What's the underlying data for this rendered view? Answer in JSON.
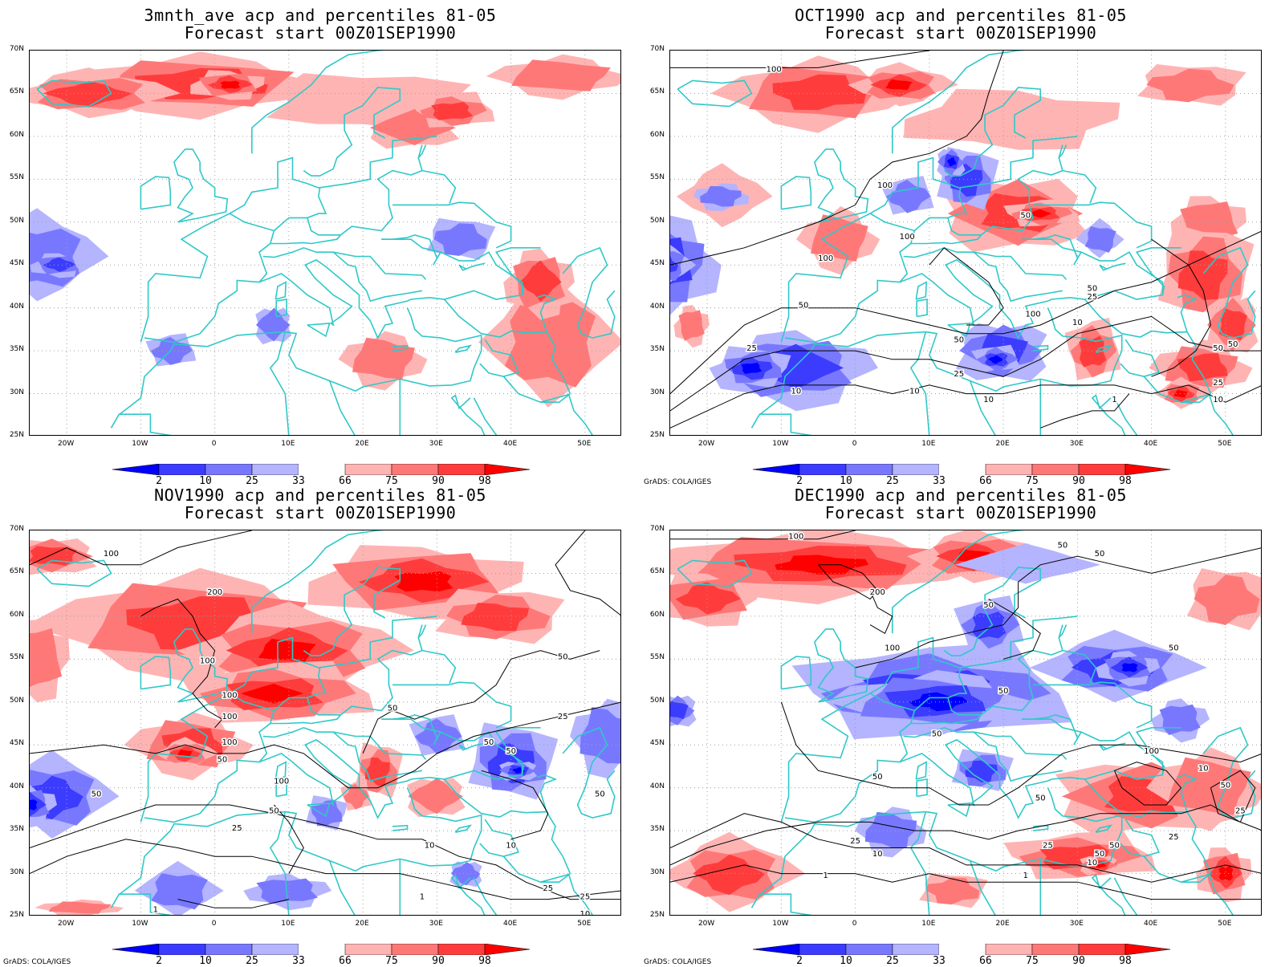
{
  "panels": [
    {
      "id": "p1",
      "title": "3mnth_ave acp and percentiles 81-05",
      "subtitle": "Forecast start 00Z01SEP1990",
      "credit": ""
    },
    {
      "id": "p2",
      "title": "OCT1990 acp and percentiles 81-05",
      "subtitle": "Forecast start 00Z01SEP1990",
      "credit": "GrADS: COLA/IGES"
    },
    {
      "id": "p3",
      "title": "NOV1990 acp and percentiles 81-05",
      "subtitle": "Forecast start 00Z01SEP1990",
      "credit": "GrADS: COLA/IGES"
    },
    {
      "id": "p4",
      "title": "DEC1990 acp and percentiles 81-05",
      "subtitle": "Forecast start 00Z01SEP1990",
      "credit": "GrADS: COLA/IGES"
    }
  ],
  "axes": {
    "lat_labels": [
      "70N",
      "65N",
      "60N",
      "55N",
      "50N",
      "45N",
      "40N",
      "35N",
      "30N",
      "25N"
    ],
    "lon_labels": [
      "20W",
      "10W",
      "0",
      "10E",
      "20E",
      "30E",
      "40E",
      "50E"
    ],
    "lat_range": [
      25,
      70
    ],
    "lon_range": [
      -25,
      55
    ]
  },
  "colorbar": {
    "labels": [
      "2",
      "10",
      "25",
      "33",
      "66",
      "75",
      "90",
      "98"
    ],
    "colors": [
      "#0000ff",
      "#3c3cff",
      "#7878ff",
      "#b4b4ff",
      "#ffffff",
      "#ffb4b4",
      "#ff7878",
      "#ff3c3c",
      "#ff0000"
    ]
  },
  "colors": {
    "coast": "#30c8c8",
    "contour": "#000000",
    "grid": "#a0a0a0"
  },
  "contour_labels": {
    "p2": [
      "100",
      "100",
      "100",
      "100",
      "50",
      "100",
      "50",
      "50",
      "50",
      "25",
      "25",
      "10",
      "10",
      "10",
      "50",
      "25",
      "10",
      "50",
      "25",
      "10",
      "1"
    ],
    "p3": [
      "100",
      "200",
      "100",
      "100",
      "100",
      "100",
      "50",
      "50",
      "50",
      "25",
      "50",
      "50",
      "100",
      "50",
      "25",
      "10",
      "10",
      "25",
      "1",
      "1",
      "50",
      "50",
      "25",
      "10"
    ],
    "p4": [
      "100",
      "200",
      "50",
      "50",
      "50",
      "50",
      "100",
      "50",
      "50",
      "50",
      "100",
      "50",
      "50",
      "25",
      "10",
      "25",
      "50",
      "10",
      "1",
      "1",
      "25",
      "10",
      "50",
      "25"
    ]
  }
}
